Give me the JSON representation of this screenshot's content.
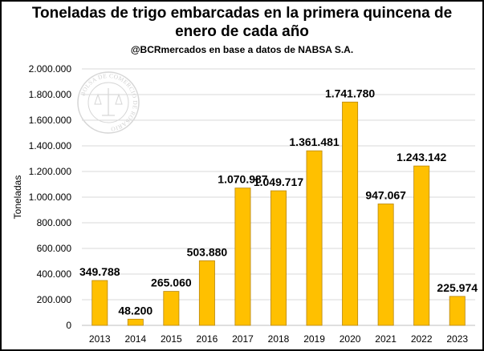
{
  "header": {
    "title_line1": "Toneladas de trigo embarcadas en la primera quincena de",
    "title_line2": "enero de cada año",
    "subtitle": "@BCRmercados en base a datos de NABSA S.A."
  },
  "watermark": {
    "text": "BOLSA DE COMERCIO DE ROSARIO"
  },
  "chart_data": {
    "type": "bar",
    "title": "Toneladas de trigo embarcadas en la primera quincena de enero de cada año",
    "subtitle": "@BCRmercados en base a datos de NABSA S.A.",
    "xlabel": "",
    "ylabel": "Toneladas",
    "categories": [
      "2013",
      "2014",
      "2015",
      "2016",
      "2017",
      "2018",
      "2019",
      "2020",
      "2021",
      "2022",
      "2023"
    ],
    "values": [
      349788,
      48200,
      265060,
      503880,
      1070987,
      1049717,
      1361481,
      1741780,
      947067,
      1243142,
      225974
    ],
    "value_labels": [
      "349.788",
      "48.200",
      "265.060",
      "503.880",
      "1.070.987",
      "1.049.717",
      "1.361.481",
      "1.741.780",
      "947.067",
      "1.243.142",
      "225.974"
    ],
    "ylim": [
      0,
      2000000
    ],
    "yticks": [
      0,
      200000,
      400000,
      600000,
      800000,
      1000000,
      1200000,
      1400000,
      1600000,
      1800000,
      2000000
    ],
    "ytick_labels": [
      "0",
      "200.000",
      "400.000",
      "600.000",
      "800.000",
      "1.000.000",
      "1.200.000",
      "1.400.000",
      "1.600.000",
      "1.800.000",
      "2.000.000"
    ],
    "grid": true,
    "legend": "none",
    "bar_color": "#FFC000",
    "bar_border_color": "#B8860B",
    "grid_color": "#D9D9D9"
  }
}
